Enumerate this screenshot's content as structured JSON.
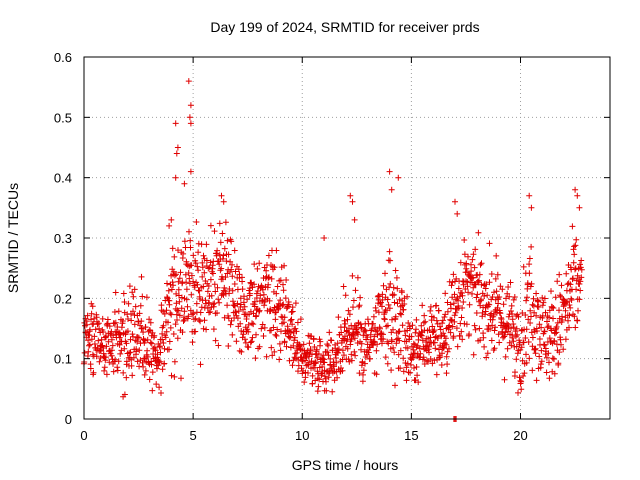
{
  "chart_data": {
    "type": "scatter",
    "title": "Day 199 of 2024, SRMTID for receiver prds",
    "xlabel": "GPS time / hours",
    "ylabel": "SRMTID / TECUs",
    "xlim": [
      0,
      24.1
    ],
    "ylim": [
      0,
      0.6
    ],
    "xticks": [
      0,
      5,
      10,
      15,
      20
    ],
    "yticks": [
      0,
      0.1,
      0.2,
      0.3,
      0.4,
      0.5,
      0.6
    ],
    "ytick_labels": [
      "0",
      "0.1",
      "0.2",
      "0.3",
      "0.4",
      "0.5",
      "0.6"
    ],
    "grid": true,
    "marker": "+",
    "color": "#e00000",
    "series_name": "SRMTID",
    "profile": [
      [
        0.0,
        0.13,
        0.03
      ],
      [
        0.5,
        0.14,
        0.04
      ],
      [
        1.0,
        0.12,
        0.04
      ],
      [
        1.5,
        0.13,
        0.04
      ],
      [
        2.0,
        0.12,
        0.05
      ],
      [
        2.5,
        0.15,
        0.05
      ],
      [
        3.0,
        0.13,
        0.04
      ],
      [
        3.5,
        0.11,
        0.04
      ],
      [
        4.0,
        0.21,
        0.07
      ],
      [
        4.5,
        0.2,
        0.07
      ],
      [
        5.0,
        0.22,
        0.07
      ],
      [
        5.5,
        0.2,
        0.06
      ],
      [
        6.0,
        0.22,
        0.06
      ],
      [
        6.5,
        0.24,
        0.07
      ],
      [
        7.0,
        0.2,
        0.05
      ],
      [
        7.5,
        0.17,
        0.05
      ],
      [
        8.0,
        0.19,
        0.05
      ],
      [
        8.5,
        0.19,
        0.05
      ],
      [
        9.0,
        0.18,
        0.05
      ],
      [
        9.5,
        0.14,
        0.04
      ],
      [
        10.0,
        0.1,
        0.03
      ],
      [
        10.5,
        0.1,
        0.03
      ],
      [
        11.0,
        0.09,
        0.03
      ],
      [
        11.5,
        0.1,
        0.03
      ],
      [
        12.0,
        0.14,
        0.05
      ],
      [
        12.5,
        0.16,
        0.06
      ],
      [
        13.0,
        0.12,
        0.04
      ],
      [
        13.5,
        0.14,
        0.05
      ],
      [
        14.0,
        0.18,
        0.06
      ],
      [
        14.5,
        0.16,
        0.06
      ],
      [
        15.0,
        0.11,
        0.04
      ],
      [
        15.5,
        0.13,
        0.04
      ],
      [
        16.0,
        0.14,
        0.04
      ],
      [
        16.5,
        0.13,
        0.04
      ],
      [
        17.0,
        0.19,
        0.06
      ],
      [
        17.5,
        0.22,
        0.05
      ],
      [
        18.0,
        0.2,
        0.05
      ],
      [
        18.5,
        0.19,
        0.05
      ],
      [
        19.0,
        0.17,
        0.05
      ],
      [
        19.5,
        0.15,
        0.05
      ],
      [
        20.0,
        0.13,
        0.05
      ],
      [
        20.5,
        0.2,
        0.07
      ],
      [
        21.0,
        0.14,
        0.05
      ],
      [
        21.5,
        0.14,
        0.05
      ],
      [
        22.0,
        0.17,
        0.06
      ],
      [
        22.5,
        0.22,
        0.06
      ],
      [
        22.8,
        0.22,
        0.05
      ]
    ],
    "outliers": [
      [
        4.8,
        0.56
      ],
      [
        4.9,
        0.52
      ],
      [
        4.85,
        0.5
      ],
      [
        4.9,
        0.49
      ],
      [
        4.2,
        0.49
      ],
      [
        4.25,
        0.44
      ],
      [
        4.3,
        0.45
      ],
      [
        4.2,
        0.4
      ],
      [
        4.6,
        0.39
      ],
      [
        4.9,
        0.41
      ],
      [
        6.3,
        0.37
      ],
      [
        6.4,
        0.36
      ],
      [
        14.0,
        0.41
      ],
      [
        14.4,
        0.4
      ],
      [
        14.1,
        0.38
      ],
      [
        12.2,
        0.37
      ],
      [
        12.3,
        0.36
      ],
      [
        12.4,
        0.33
      ],
      [
        11.0,
        0.3
      ],
      [
        17.0,
        0.36
      ],
      [
        17.1,
        0.34
      ],
      [
        20.4,
        0.37
      ],
      [
        20.5,
        0.35
      ],
      [
        22.5,
        0.38
      ],
      [
        22.6,
        0.37
      ],
      [
        22.7,
        0.35
      ],
      [
        4.0,
        0.33
      ],
      [
        3.9,
        0.32
      ]
    ],
    "zero_points": [
      [
        16.95,
        0.0
      ],
      [
        17.0,
        0.0
      ],
      [
        17.05,
        0.0
      ]
    ]
  }
}
